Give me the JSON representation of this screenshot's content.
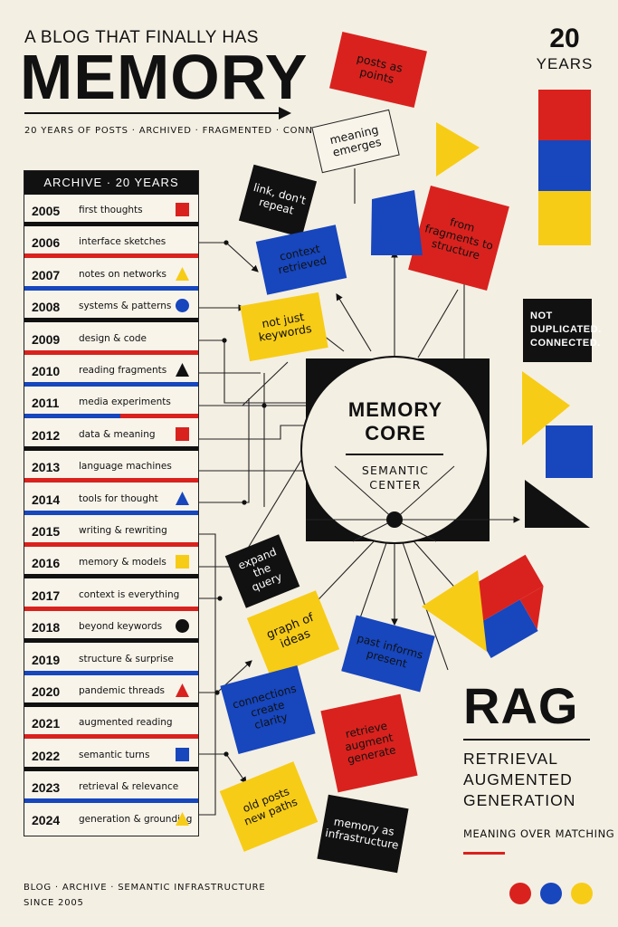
{
  "header": {
    "kicker": "A BLOG THAT FINALLY HAS",
    "headline": "MEMORY",
    "subline": "20 YEARS OF POSTS · ARCHIVED · FRAGMENTED · CONNECTED"
  },
  "badge": {
    "number": "20",
    "word": "YEARS"
  },
  "archive": {
    "title": "ARCHIVE · 20 YEARS",
    "rows": [
      {
        "year": "2005",
        "label": "first thoughts",
        "marker": "red-square"
      },
      {
        "year": "2006",
        "label": "interface sketches",
        "marker": ""
      },
      {
        "year": "2007",
        "label": "notes on networks",
        "marker": "yellow-triangle"
      },
      {
        "year": "2008",
        "label": "systems & patterns",
        "marker": "blue-circle"
      },
      {
        "year": "2009",
        "label": "design & code",
        "marker": ""
      },
      {
        "year": "2010",
        "label": "reading fragments",
        "marker": "black-triangle"
      },
      {
        "year": "2011",
        "label": "media experiments",
        "marker": ""
      },
      {
        "year": "2012",
        "label": "data & meaning",
        "marker": "red-square"
      },
      {
        "year": "2013",
        "label": "language machines",
        "marker": ""
      },
      {
        "year": "2014",
        "label": "tools for thought",
        "marker": "blue-triangle"
      },
      {
        "year": "2015",
        "label": "writing & rewriting",
        "marker": ""
      },
      {
        "year": "2016",
        "label": "memory & models",
        "marker": "yellow-square"
      },
      {
        "year": "2017",
        "label": "context is everything",
        "marker": ""
      },
      {
        "year": "2018",
        "label": "beyond keywords",
        "marker": "black-circle"
      },
      {
        "year": "2019",
        "label": "structure & surprise",
        "marker": ""
      },
      {
        "year": "2020",
        "label": "pandemic threads",
        "marker": "red-triangle"
      },
      {
        "year": "2021",
        "label": "augmented reading",
        "marker": ""
      },
      {
        "year": "2022",
        "label": "semantic turns",
        "marker": "blue-square"
      },
      {
        "year": "2023",
        "label": "retrieval & relevance",
        "marker": ""
      },
      {
        "year": "2024",
        "label": "generation & grounding",
        "marker": "yellow-triangle"
      }
    ]
  },
  "cards": {
    "posts_as_points": "posts as points",
    "meaning_emerges": "meaning emerges",
    "link_dont_repeat": "link, don't repeat",
    "from_fragments": "from fragments to structure",
    "context_retrieved": "context retrieved",
    "not_just_keywords": "not just keywords",
    "expand_the_query": "expand the query",
    "graph_of_ideas": "graph of ideas",
    "past_informs_present": "past informs present",
    "connections_create_clarity": "connections create clarity",
    "retrieve_augment_generate": "retrieve augment generate",
    "old_posts_new_paths": "old posts new paths",
    "memory_as_infrastructure": "memory as infrastructure"
  },
  "note": {
    "line1": "NOT",
    "line2": "DUPLICATED.",
    "line3": "CONNECTED."
  },
  "core": {
    "title_line1": "MEMORY",
    "title_line2": "CORE",
    "sub_line1": "SEMANTIC",
    "sub_line2": "CENTER"
  },
  "rag": {
    "title": "RAG",
    "line1": "RETRIEVAL",
    "line2": "AUGMENTED",
    "line3": "GENERATION",
    "tagline": "MEANING OVER MATCHING"
  },
  "footer": {
    "line1": "BLOG · ARCHIVE · SEMANTIC INFRASTRUCTURE",
    "line2": "SINCE 2005"
  },
  "colors": {
    "red": "#d9221e",
    "blue": "#1746bd",
    "yellow": "#f7cc16",
    "black": "#111111",
    "paper": "#f4efe3"
  }
}
